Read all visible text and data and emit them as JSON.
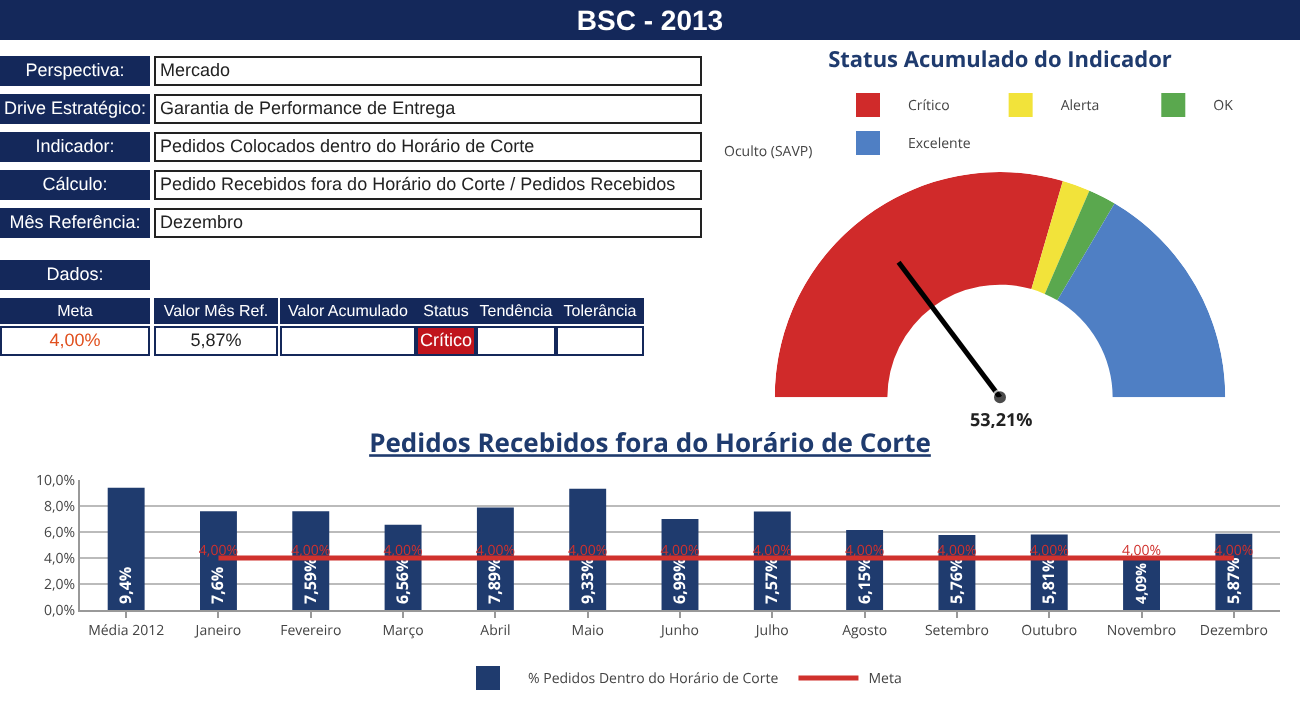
{
  "chart_data": [
    {
      "type": "other",
      "title": "BSC - 2013",
      "annotations": [
        "Perspectiva:",
        "Mercado",
        "Drive Estratégico:",
        "Garantia de Performance de Entrega",
        "Indicador:",
        "Pedidos Colocados dentro do Horário de Corte",
        "Cálculo:",
        "Pedido Recebidos fora do Horário do Corte / Pedidos Recebidos",
        "Mês Referência:",
        "Dezembro",
        "Dados:",
        "Meta",
        "Valor Mês Ref.",
        "Valor Acumulado",
        "Status",
        "Tendência",
        "Tolerância",
        "4,00%",
        "5,87%",
        "Crítico"
      ]
    },
    {
      "type": "donut",
      "title": "Status Acumulado do Indicador",
      "categories": [
        "Crítico",
        "Alerta",
        "OK",
        "Excelente"
      ],
      "values": [
        59,
        4,
        4,
        33
      ],
      "colors": [
        "#d02a2a",
        "#f2e33a",
        "#5aa84e",
        "#4f7fc4"
      ],
      "needle": "Crítico",
      "annotations": [
        "Oculto (SAVP)",
        "53,21%"
      ],
      "legend": "top"
    },
    {
      "type": "bar",
      "title": "Pedidos Recebidos fora do Horário de Corte",
      "categories": [
        "Média 2012",
        "Janeiro",
        "Fevereiro",
        "Março",
        "Abril",
        "Maio",
        "Junho",
        "Julho",
        "Agosto",
        "Setembro",
        "Outubro",
        "Novembro",
        "Dezembro"
      ],
      "series": [
        {
          "name": "% Pedidos Dentro do Horário de Corte",
          "color": "#1f3b6e",
          "values": [
            9.4,
            7.6,
            7.59,
            6.56,
            7.89,
            9.33,
            6.99,
            7.57,
            6.15,
            5.76,
            5.81,
            4.09,
            5.87
          ],
          "value_labels": [
            "9,4%",
            "7,6%",
            "7,59%",
            "6,56%",
            "7,89%",
            "9,33%",
            "6,99%",
            "7,57%",
            "6,15%",
            "5,76%",
            "5,81%",
            "4,09%",
            "5,87%"
          ]
        },
        {
          "name": "Meta",
          "type": "line",
          "color": "#d0312d",
          "values": [
            null,
            4,
            4,
            4,
            4,
            4,
            4,
            4,
            4,
            4,
            4,
            4,
            4
          ],
          "value_labels": [
            null,
            "4,00%",
            "4,00%",
            "4,00%",
            "4,00%",
            "4,00%",
            "4,00%",
            "4,00%",
            "4,00%",
            "4,00%",
            "4,00%",
            "4,00%",
            "4,00%"
          ]
        }
      ],
      "ylim": [
        0,
        10
      ],
      "yticks": [
        {
          "value": 0,
          "label": "0,0%"
        },
        {
          "value": 2,
          "label": "2,0%"
        },
        {
          "value": 4,
          "label": "4,0%"
        },
        {
          "value": 6,
          "label": "6,0%"
        },
        {
          "value": 8,
          "label": "8,0%"
        },
        {
          "value": 10,
          "label": "10,0%"
        }
      ],
      "grid": "y",
      "legend": "bottom"
    }
  ]
}
